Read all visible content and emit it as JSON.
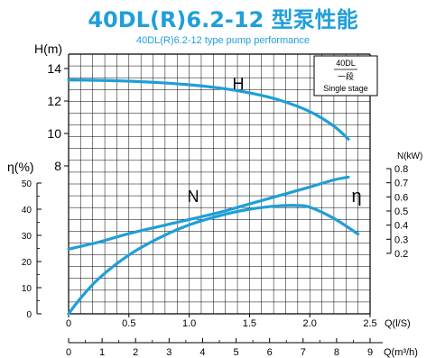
{
  "title": "40DL(R)6.2-12 型泵性能",
  "subtitle": "40DL(R)6.2-12 type pump performance",
  "colors": {
    "title": "#1f9fdc",
    "curve": "#1e9fd8",
    "grid": "#000000",
    "text": "#000000"
  },
  "legend_box": {
    "model": "40DL",
    "stage_cn": "一段",
    "stage_en": "Single stage"
  },
  "chart_data": {
    "type": "line",
    "title": "40DL(R)6.2-12 型泵性能",
    "subtitle": "40DL(R)6.2-12 type pump performance",
    "x_axis": {
      "label": "Q(l/S)",
      "range": [
        0,
        2.5
      ],
      "ticks": [
        "0",
        "0.5",
        "1.0",
        "1.5",
        "2.0",
        "2.5"
      ]
    },
    "x2_axis": {
      "label": "Q(m³/h)",
      "range": [
        0,
        9
      ],
      "ticks": [
        "0",
        "1",
        "2",
        "3",
        "4",
        "5",
        "6",
        "7",
        "8",
        "9"
      ]
    },
    "y_head": {
      "label": "H(m)",
      "range": [
        8,
        14
      ],
      "ticks": [
        "8",
        "10",
        "12",
        "14"
      ]
    },
    "y_eff": {
      "label": "η(%)",
      "range": [
        0,
        50
      ],
      "ticks": [
        "0",
        "10",
        "20",
        "30",
        "40",
        "50"
      ]
    },
    "y_power": {
      "label": "N(kW)",
      "range": [
        0.2,
        0.8
      ],
      "ticks": [
        "0.2",
        "0.3",
        "0.4",
        "0.5",
        "0.6",
        "0.7",
        "0.8"
      ]
    },
    "grid": true,
    "series": [
      {
        "name": "H",
        "axis": "head",
        "x": [
          0,
          0.25,
          0.5,
          0.75,
          1.0,
          1.25,
          1.5,
          1.75,
          2.0,
          2.2,
          2.32
        ],
        "y": [
          13.3,
          13.27,
          13.22,
          13.13,
          13.0,
          12.8,
          12.5,
          12.05,
          11.35,
          10.45,
          9.65
        ]
      },
      {
        "name": "N",
        "axis": "power",
        "x": [
          0,
          0.25,
          0.5,
          0.75,
          1.0,
          1.25,
          1.5,
          1.75,
          2.0,
          2.2,
          2.32
        ],
        "y": [
          0.23,
          0.28,
          0.34,
          0.39,
          0.44,
          0.49,
          0.55,
          0.61,
          0.67,
          0.72,
          0.74
        ]
      },
      {
        "name": "η",
        "axis": "eff",
        "x": [
          0,
          0.1,
          0.25,
          0.5,
          0.75,
          1.0,
          1.25,
          1.5,
          1.75,
          1.9,
          2.0,
          2.2,
          2.4
        ],
        "y": [
          0,
          6,
          13.5,
          22.5,
          29,
          34,
          37.5,
          40,
          41.3,
          41.4,
          40.8,
          36.5,
          30.5
        ]
      }
    ],
    "annotations": [
      "H",
      "N",
      "η"
    ]
  }
}
